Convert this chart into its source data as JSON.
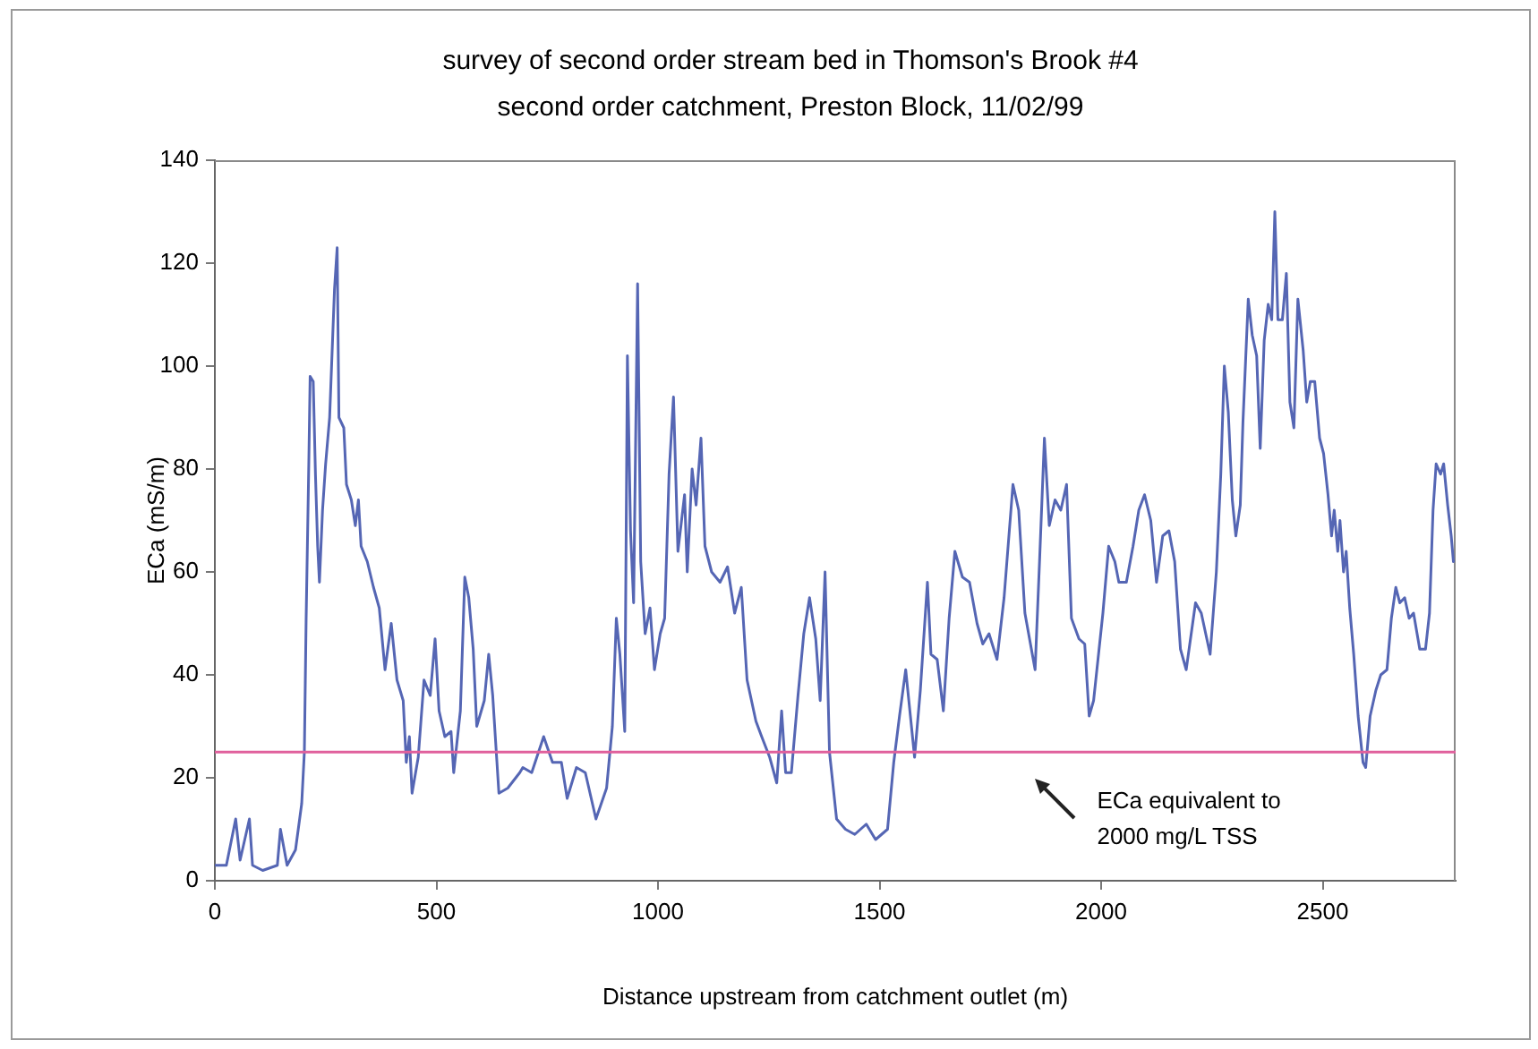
{
  "chart_data": {
    "type": "line",
    "title": "survey of second order stream bed in Thomson's Brook #4\nsecond order catchment, Preston Block, 11/02/99",
    "xlabel": "Distance upstream from catchment outlet (m)",
    "ylabel": "ECa (mS/m)",
    "x": [
      0,
      26,
      47,
      57,
      78,
      85,
      108,
      141,
      148,
      163,
      182,
      196,
      202,
      206,
      212,
      215,
      222,
      227,
      232,
      236,
      243,
      250,
      259,
      270,
      276,
      280,
      291,
      297,
      308,
      317,
      324,
      330,
      344,
      358,
      371,
      384,
      398,
      411,
      425,
      432,
      439,
      445,
      459,
      472,
      486,
      497,
      506,
      519,
      533,
      539,
      554,
      564,
      573,
      583,
      591,
      608,
      618,
      627,
      641,
      661,
      688,
      695,
      715,
      742,
      762,
      782,
      795,
      816,
      836,
      860,
      884,
      897,
      906,
      914,
      925,
      931,
      938,
      945,
      954,
      961,
      971,
      982,
      992,
      1005,
      1015,
      1025,
      1035,
      1045,
      1060,
      1066,
      1077,
      1086,
      1097,
      1106,
      1121,
      1140,
      1157,
      1173,
      1188,
      1201,
      1221,
      1234,
      1252,
      1268,
      1279,
      1288,
      1301,
      1316,
      1329,
      1342,
      1356,
      1366,
      1377,
      1387,
      1403,
      1423,
      1444,
      1457,
      1470,
      1491,
      1518,
      1532,
      1545,
      1559,
      1579,
      1592,
      1608,
      1616,
      1630,
      1644,
      1657,
      1670,
      1687,
      1703,
      1720,
      1733,
      1747,
      1765,
      1781,
      1801,
      1814,
      1828,
      1851,
      1861,
      1872,
      1883,
      1896,
      1909,
      1922,
      1933,
      1950,
      1963,
      1973,
      1983,
      2004,
      2017,
      2031,
      2040,
      2057,
      2072,
      2085,
      2098,
      2112,
      2125,
      2139,
      2153,
      2166,
      2179,
      2192,
      2213,
      2226,
      2246,
      2260,
      2270,
      2278,
      2287,
      2296,
      2304,
      2314,
      2320,
      2332,
      2341,
      2351,
      2359,
      2368,
      2377,
      2385,
      2392,
      2399,
      2409,
      2418,
      2426,
      2435,
      2444,
      2456,
      2464,
      2472,
      2482,
      2493,
      2502,
      2512,
      2520,
      2526,
      2534,
      2539,
      2547,
      2553,
      2561,
      2570,
      2580,
      2591,
      2597,
      2607,
      2620,
      2631,
      2645,
      2655,
      2665,
      2674,
      2685,
      2695,
      2705,
      2719,
      2732,
      2741,
      2749,
      2756,
      2766,
      2773,
      2782,
      2790,
      2795
    ],
    "values": [
      3,
      3,
      12,
      4,
      12,
      3,
      2,
      3,
      10,
      3,
      6,
      15,
      25,
      51,
      81,
      98,
      97,
      79,
      65,
      58,
      72,
      81,
      90,
      115,
      123,
      90,
      88,
      77,
      74,
      69,
      74,
      65,
      62,
      57,
      53,
      41,
      50,
      39,
      35,
      23,
      28,
      17,
      24,
      39,
      36,
      47,
      33,
      28,
      29,
      21,
      33,
      59,
      55,
      45,
      30,
      35,
      44,
      36,
      17,
      18,
      21,
      22,
      21,
      28,
      23,
      23,
      16,
      22,
      21,
      12,
      18,
      30,
      51,
      44,
      29,
      102,
      68,
      54,
      116,
      62,
      48,
      53,
      41,
      48,
      51,
      79,
      94,
      64,
      75,
      60,
      80,
      73,
      86,
      65,
      60,
      58,
      61,
      52,
      57,
      39,
      31,
      28,
      24,
      19,
      33,
      21,
      21,
      36,
      48,
      55,
      47,
      35,
      60,
      25,
      12,
      10,
      9,
      10,
      11,
      8,
      10,
      23,
      32,
      41,
      24,
      37,
      58,
      44,
      43,
      33,
      51,
      64,
      59,
      58,
      50,
      46,
      48,
      43,
      55,
      77,
      72,
      52,
      41,
      62,
      86,
      69,
      74,
      72,
      77,
      51,
      47,
      46,
      32,
      35,
      52,
      65,
      62,
      58,
      58,
      65,
      72,
      75,
      70,
      58,
      67,
      68,
      62,
      45,
      41,
      54,
      52,
      44,
      60,
      79,
      100,
      91,
      74,
      67,
      73,
      89,
      113,
      106,
      102,
      84,
      105,
      112,
      109,
      130,
      109,
      109,
      118,
      93,
      88,
      113,
      103,
      93,
      97,
      97,
      86,
      83,
      75,
      67,
      72,
      64,
      70,
      60,
      64,
      53,
      44,
      32,
      23,
      22,
      32,
      37,
      40,
      41,
      51,
      57,
      54,
      55,
      51,
      52,
      45,
      45,
      52,
      72,
      81,
      79,
      81,
      73,
      67,
      62
    ],
    "color": "#5566b4",
    "xlim": [
      0,
      2800
    ],
    "ylim": [
      0,
      140
    ],
    "xticks": [
      0,
      500,
      1000,
      1500,
      2000,
      2500
    ],
    "yticks": [
      0,
      20,
      40,
      60,
      80,
      100,
      120,
      140
    ],
    "ref_lines": [
      {
        "axis": "y",
        "value": 25,
        "label": "ECa equivalent to\n2000 mg/L TSS",
        "color": "#e0609c"
      }
    ],
    "grid": false,
    "legend": false,
    "marker": "none",
    "line_style": "solid"
  }
}
